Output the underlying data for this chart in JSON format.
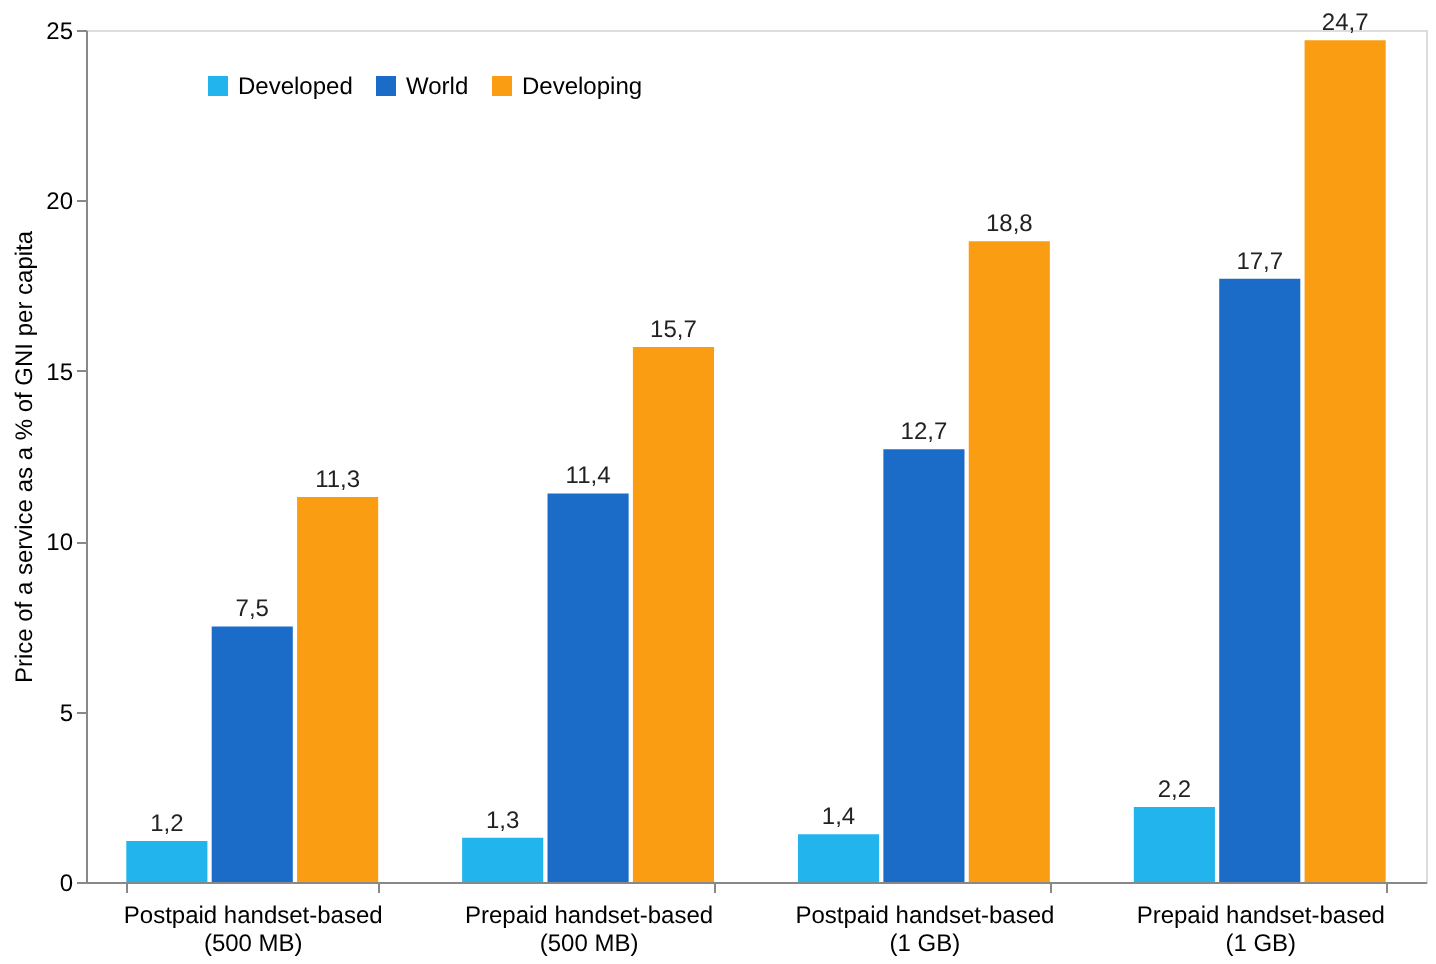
{
  "chart_data": {
    "type": "bar",
    "ylabel": "Price of a service as a % of GNI per capita",
    "categories": [
      "Postpaid handset-based\n(500 MB)",
      "Prepaid handset-based\n(500 MB)",
      "Postpaid handset-based\n(1 GB)",
      "Prepaid handset-based\n(1 GB)"
    ],
    "series": [
      {
        "name": "Developed",
        "color": "#22b4ec",
        "values": [
          1.2,
          1.3,
          1.4,
          2.2
        ],
        "value_labels": [
          "1,2",
          "1,3",
          "1,4",
          "2,2"
        ]
      },
      {
        "name": "World",
        "color": "#1a6cc8",
        "values": [
          7.5,
          11.4,
          12.7,
          17.7
        ],
        "value_labels": [
          "7,5",
          "11,4",
          "12,7",
          "17,7"
        ]
      },
      {
        "name": "Developing",
        "color": "#fb9d12",
        "values": [
          11.3,
          15.7,
          18.8,
          24.7
        ],
        "value_labels": [
          "11,3",
          "15,7",
          "18,8",
          "24,7"
        ]
      }
    ],
    "ylim": [
      0,
      25
    ],
    "yticks": [
      0,
      5,
      10,
      15,
      20,
      25
    ],
    "grid": false,
    "legend": "top left"
  }
}
